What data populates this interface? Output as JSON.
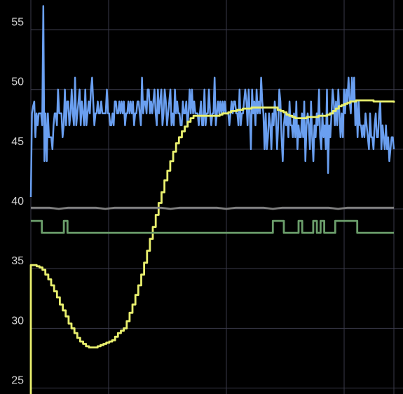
{
  "chart_data": {
    "type": "line",
    "title": "",
    "xlabel": "",
    "ylabel": "",
    "ylim": [
      24.5,
      57.5
    ],
    "yticks": [
      "25",
      "30",
      "35",
      "40",
      "45",
      "50",
      "55"
    ],
    "grid": true,
    "legend": "none",
    "background": "#000000",
    "grid_color": "#3a3a4a",
    "series": [
      {
        "color": "#6a9ff0",
        "values": [
          41,
          48,
          48.6,
          49,
          46,
          48,
          47,
          48,
          48,
          48,
          47,
          57,
          44,
          48,
          44,
          48,
          46,
          46,
          46,
          45,
          47,
          48,
          48,
          47,
          50,
          48,
          48,
          48,
          46,
          47,
          50,
          47,
          49,
          49,
          47,
          48,
          50,
          48,
          47,
          51,
          47,
          48,
          49,
          50,
          47,
          49,
          48,
          47,
          50,
          47,
          48,
          49,
          48,
          50,
          51,
          49,
          47,
          48,
          48,
          49,
          48,
          48,
          49,
          48,
          48,
          48,
          48,
          50,
          48,
          48,
          47,
          47,
          48,
          47,
          49,
          49,
          48,
          48,
          49,
          48,
          49,
          48,
          49,
          47,
          48,
          48,
          49,
          48,
          49,
          48,
          49,
          47,
          48,
          48,
          49,
          49,
          48,
          47,
          51,
          48,
          49,
          49,
          48,
          50,
          50,
          48,
          49,
          48,
          49,
          50,
          48,
          47,
          50,
          48,
          49,
          50,
          47,
          48,
          50,
          49,
          47,
          48,
          49,
          50,
          47,
          48,
          47,
          50,
          48,
          49,
          48,
          48,
          47,
          47,
          49,
          48,
          48,
          49,
          47,
          48,
          50,
          48,
          50,
          48,
          49,
          48,
          48,
          48,
          47,
          48,
          49,
          47,
          47,
          50,
          47,
          48,
          48,
          50,
          48,
          47,
          48,
          48,
          51,
          47,
          48,
          49,
          48,
          49,
          48,
          49,
          48,
          49,
          48,
          48,
          48,
          47,
          48,
          49,
          48,
          49,
          49,
          48,
          48,
          47,
          50,
          47,
          48,
          48,
          49,
          50,
          49,
          47,
          50,
          48,
          45,
          50,
          48,
          49,
          47,
          50,
          48,
          49,
          48,
          51,
          49,
          48,
          45,
          48,
          45,
          46,
          48,
          47,
          45,
          48,
          47,
          49,
          48,
          45,
          47,
          50,
          49,
          46,
          44,
          47,
          48,
          47,
          48,
          46,
          49,
          47,
          47,
          46,
          48,
          46,
          49,
          45,
          47,
          46,
          46,
          48,
          46,
          49,
          44,
          47,
          48,
          47,
          45,
          49,
          46,
          44,
          47,
          46,
          48,
          47,
          50,
          46,
          45,
          48,
          46,
          47,
          45,
          50,
          43,
          47,
          46,
          48,
          50,
          49,
          47,
          49,
          47,
          50,
          48,
          46,
          48,
          46,
          50,
          48,
          50,
          49,
          51,
          49,
          48,
          51,
          49,
          51,
          47,
          49,
          46,
          49,
          47,
          47,
          46,
          47,
          46,
          48,
          47,
          46,
          45,
          48,
          46,
          46,
          45,
          47,
          48,
          46,
          46,
          48,
          49,
          45,
          47,
          46,
          45,
          47,
          45,
          46,
          44,
          45,
          46,
          46,
          45
        ]
      },
      {
        "color": "#e9f06e",
        "values": [
          35.3,
          35.3,
          35.2,
          35.1,
          34.9,
          34.5,
          34.1,
          33.6,
          33.1,
          32.6,
          32.0,
          31.5,
          31.0,
          30.4,
          30.0,
          29.6,
          29.2,
          28.9,
          28.7,
          28.5,
          28.4,
          28.4,
          28.4,
          28.5,
          28.6,
          28.7,
          28.8,
          28.9,
          29.0,
          29.3,
          29.6,
          29.8,
          30.0,
          30.6,
          31.3,
          32.0,
          32.8,
          33.6,
          34.5,
          35.5,
          36.5,
          37.5,
          38.5,
          39.5,
          40.5,
          41.4,
          42.4,
          43.2,
          44.0,
          44.8,
          45.5,
          46.0,
          46.5,
          46.9,
          47.3,
          47.6,
          47.8,
          47.8,
          47.8,
          47.8,
          47.8,
          47.8,
          47.8,
          47.8,
          47.8,
          47.9,
          48.0,
          48.0,
          48.1,
          48.2,
          48.2,
          48.3,
          48.3,
          48.4,
          48.4,
          48.4,
          48.5,
          48.5,
          48.5,
          48.5,
          48.5,
          48.5,
          48.5,
          48.5,
          48.5,
          48.3,
          48.2,
          48.1,
          47.9,
          47.8,
          47.7,
          47.6,
          47.6,
          47.6,
          47.6,
          47.7,
          47.7,
          47.7,
          47.7,
          47.8,
          47.8,
          47.8,
          47.9,
          48.0,
          48.2,
          48.4,
          48.6,
          48.7,
          48.8,
          48.9,
          49.0,
          49.0,
          49.1,
          49.1,
          49.1,
          49.1,
          49.1,
          49.1,
          49.0,
          49.0,
          49.0,
          49.0,
          49.0,
          49.0,
          49.0,
          48.9
        ]
      },
      {
        "color": "#808080",
        "values": [
          40.1,
          40.1,
          40.1,
          40.0,
          40.1,
          40.1,
          40.1,
          40.1,
          40.0,
          40.1,
          40.1,
          40.1,
          40.1,
          40.1,
          40.1,
          40.0,
          40.1,
          40.1,
          40.1,
          40.1,
          40.1,
          40.0,
          40.1,
          40.1,
          40.1,
          40.1,
          40.0,
          40.1,
          40.1,
          40.1,
          40.1,
          40.1,
          40.1,
          40.0,
          40.1,
          40.1,
          40.1,
          40.1,
          40.1,
          40.1
        ]
      },
      {
        "color": "#6b9e6b",
        "values": [
          39,
          39,
          39,
          38,
          38,
          38,
          38,
          38,
          38,
          39,
          38,
          38,
          38,
          38,
          38,
          38,
          38,
          38,
          38,
          38,
          38,
          38,
          38,
          38,
          38,
          38,
          38,
          38,
          38,
          38,
          38,
          38,
          38,
          38,
          38,
          38,
          38,
          38,
          38,
          38,
          38,
          38,
          38,
          38,
          38,
          38,
          38,
          38,
          38,
          38,
          38,
          38,
          38,
          38,
          38,
          38,
          38,
          38,
          38,
          38,
          38,
          38,
          38,
          38,
          38,
          38,
          39,
          39,
          39,
          38,
          38,
          38,
          38,
          39,
          38,
          38,
          38,
          39,
          38,
          39,
          38,
          38,
          38,
          39,
          39,
          39,
          39,
          39,
          39,
          38,
          38,
          38,
          38,
          38,
          38,
          38,
          38,
          38,
          38,
          38
        ]
      }
    ]
  }
}
